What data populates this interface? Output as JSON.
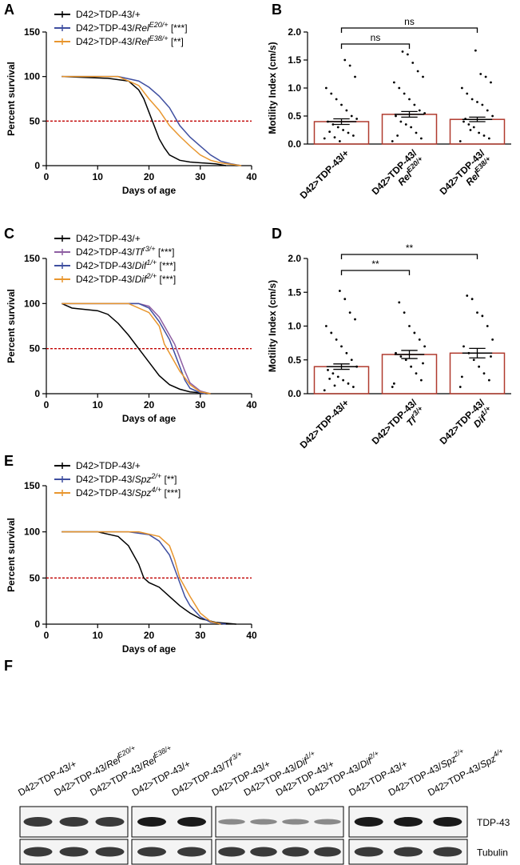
{
  "chart_data": [
    {
      "type": "line",
      "panel": "A",
      "ylabel": "Percent survival",
      "xlabel": "Days of age",
      "xlim": [
        0,
        40
      ],
      "xticks": [
        0,
        10,
        20,
        30,
        40
      ],
      "ylim": [
        0,
        150
      ],
      "yticks": [
        0,
        50,
        100,
        150
      ],
      "hline": 50,
      "hline_color": "#c00000",
      "series": [
        {
          "name": "D42>TDP-43/+",
          "color": "#000000",
          "x": [
            3,
            12,
            16,
            18,
            19,
            20,
            21,
            22,
            23,
            24,
            26,
            28,
            33,
            35
          ],
          "values": [
            100,
            98,
            95,
            85,
            75,
            60,
            45,
            30,
            20,
            12,
            6,
            4,
            2,
            0
          ]
        },
        {
          "name": "D42>TDP-43/",
          "gene": "Rel",
          "allele": "E20/+",
          "significance": "[***]",
          "color": "#3f4fa0",
          "x": [
            3,
            14,
            18,
            20,
            22,
            24,
            26,
            28,
            30,
            32,
            34,
            36,
            38
          ],
          "values": [
            100,
            100,
            95,
            88,
            78,
            65,
            45,
            32,
            22,
            12,
            5,
            2,
            0
          ]
        },
        {
          "name": "D42>TDP-43/",
          "gene": "Rel",
          "allele": "E38/+",
          "significance": "[**]",
          "color": "#e8962e",
          "x": [
            3,
            14,
            18,
            20,
            22,
            24,
            26,
            28,
            30,
            32,
            34,
            38
          ],
          "values": [
            100,
            100,
            90,
            75,
            62,
            45,
            33,
            22,
            12,
            6,
            3,
            0
          ]
        }
      ]
    },
    {
      "type": "bar",
      "panel": "B",
      "ylabel": "Motility Index (cm/s)",
      "categories": [
        "D42>TDP-43/+",
        "D42>TDP-43/",
        "D42>TDP-43/"
      ],
      "category_genes": [
        null,
        "Rel",
        "Rel"
      ],
      "category_alleles": [
        null,
        "E20/+",
        "E38/+"
      ],
      "values": [
        0.4,
        0.53,
        0.44
      ],
      "errors": [
        0.05,
        0.05,
        0.04
      ],
      "color": "#b03a2e",
      "points": [
        [
          0.1,
          0.15,
          0.2,
          0.25,
          0.3,
          0.35,
          0.4,
          0.45,
          0.5,
          0.6,
          0.7,
          0.8,
          0.9,
          1.0,
          1.2,
          1.4,
          1.5,
          0.05,
          0.12,
          0.22
        ],
        [
          0.05,
          0.1,
          0.2,
          0.3,
          0.35,
          0.4,
          0.5,
          0.55,
          0.6,
          0.7,
          0.8,
          0.9,
          1.0,
          1.1,
          1.2,
          1.3,
          1.45,
          1.6,
          1.65,
          0.15
        ],
        [
          0.05,
          0.1,
          0.15,
          0.2,
          0.3,
          0.35,
          0.4,
          0.5,
          0.6,
          0.7,
          0.75,
          0.8,
          0.9,
          1.0,
          1.1,
          1.2,
          1.25,
          1.67,
          0.25,
          0.45
        ]
      ],
      "ylim": [
        0,
        2
      ],
      "yticks": [
        {
          "value": 0,
          "label": "0.0"
        },
        0.5,
        {
          "value": 1,
          "label": "1.0"
        },
        1.5,
        {
          "value": 2,
          "label": "2.0"
        }
      ],
      "annotations": [
        {
          "from": 0,
          "to": 1,
          "label": "ns"
        },
        {
          "from": 0,
          "to": 2,
          "label": "ns"
        }
      ]
    },
    {
      "type": "line",
      "panel": "C",
      "ylabel": "Percent survival",
      "xlabel": "Days of age",
      "xlim": [
        0,
        40
      ],
      "xticks": [
        0,
        10,
        20,
        30,
        40
      ],
      "ylim": [
        0,
        150
      ],
      "yticks": [
        0,
        50,
        100,
        150
      ],
      "hline": 50,
      "hline_color": "#c00000",
      "series": [
        {
          "name": "D42>TDP-43/+",
          "color": "#000000",
          "x": [
            3,
            5,
            10,
            12,
            14,
            16,
            18,
            20,
            22,
            24,
            26,
            28,
            32
          ],
          "values": [
            100,
            95,
            92,
            88,
            78,
            65,
            50,
            35,
            20,
            10,
            5,
            2,
            0
          ]
        },
        {
          "name": "D42>TDP-43/",
          "gene": "Tl",
          "allele": "r3/+",
          "significance": "[***]",
          "color": "#8e5ea2",
          "x": [
            3,
            18,
            20,
            22,
            24,
            25,
            26,
            27,
            28,
            30,
            32
          ],
          "values": [
            100,
            100,
            97,
            85,
            65,
            55,
            40,
            25,
            12,
            3,
            0
          ]
        },
        {
          "name": "D42>TDP-43/",
          "gene": "Dif",
          "allele": "1/+",
          "significance": "[***]",
          "color": "#3f4fa0",
          "x": [
            3,
            18,
            20,
            22,
            24,
            25,
            26,
            27,
            28,
            30,
            31
          ],
          "values": [
            100,
            100,
            95,
            80,
            60,
            45,
            30,
            15,
            6,
            1,
            0
          ]
        },
        {
          "name": "D42>TDP-43/",
          "gene": "Dif",
          "allele": "2/+",
          "significance": "[***]",
          "color": "#e8962e",
          "x": [
            3,
            16,
            20,
            22,
            23,
            24,
            26,
            28,
            30,
            32
          ],
          "values": [
            100,
            100,
            90,
            75,
            55,
            45,
            25,
            10,
            2,
            0
          ]
        }
      ]
    },
    {
      "type": "bar",
      "panel": "D",
      "ylabel": "Motility Index (cm/s)",
      "categories": [
        "D42>TDP-43/+",
        "D42>TDP-43/",
        "D42>TDP-43/"
      ],
      "category_genes": [
        null,
        "Tl",
        "Dif"
      ],
      "category_alleles": [
        null,
        "r3/+",
        "1/+"
      ],
      "values": [
        0.4,
        0.58,
        0.6
      ],
      "errors": [
        0.04,
        0.06,
        0.07
      ],
      "color": "#b03a2e",
      "points": [
        [
          0.05,
          0.1,
          0.15,
          0.2,
          0.25,
          0.3,
          0.35,
          0.4,
          0.5,
          0.6,
          0.7,
          0.8,
          0.9,
          1.0,
          1.1,
          1.2,
          1.4,
          1.52,
          0.12,
          0.22
        ],
        [
          0.1,
          0.2,
          0.3,
          0.4,
          0.5,
          0.55,
          0.6,
          0.7,
          0.8,
          0.9,
          1.0,
          1.2,
          1.35,
          0.15,
          0.45
        ],
        [
          0.1,
          0.2,
          0.3,
          0.4,
          0.5,
          0.6,
          0.7,
          0.8,
          1.0,
          1.15,
          1.2,
          1.4,
          1.45,
          0.25,
          0.55
        ]
      ],
      "ylim": [
        0,
        2
      ],
      "yticks": [
        {
          "value": 0,
          "label": "0.0"
        },
        0.5,
        {
          "value": 1,
          "label": "1.0"
        },
        1.5,
        {
          "value": 2,
          "label": "2.0"
        }
      ],
      "annotations": [
        {
          "from": 0,
          "to": 1,
          "label": "**"
        },
        {
          "from": 0,
          "to": 2,
          "label": "**"
        }
      ]
    },
    {
      "type": "line",
      "panel": "E",
      "ylabel": "Percent survival",
      "xlabel": "Days of age",
      "xlim": [
        0,
        40
      ],
      "xticks": [
        0,
        10,
        20,
        30,
        40
      ],
      "ylim": [
        0,
        150
      ],
      "yticks": [
        0,
        50,
        100,
        150
      ],
      "hline": 50,
      "hline_color": "#c00000",
      "series": [
        {
          "name": "D42>TDP-43/+",
          "color": "#000000",
          "x": [
            3,
            10,
            14,
            16,
            18,
            19,
            20,
            22,
            24,
            26,
            28,
            30,
            33,
            37
          ],
          "values": [
            100,
            100,
            95,
            85,
            65,
            50,
            45,
            40,
            30,
            20,
            12,
            6,
            2,
            0
          ]
        },
        {
          "name": "D42>TDP-43/",
          "gene": "Spz",
          "allele": "2/+",
          "significance": "[**]",
          "color": "#3f4fa0",
          "x": [
            3,
            16,
            20,
            22,
            24,
            25,
            26,
            27,
            28,
            30,
            32,
            35
          ],
          "values": [
            100,
            100,
            97,
            90,
            75,
            60,
            45,
            30,
            20,
            8,
            2,
            0
          ]
        },
        {
          "name": "D42>TDP-43/",
          "gene": "Spz",
          "allele": "4/+",
          "significance": "[***]",
          "color": "#e8962e",
          "x": [
            3,
            18,
            22,
            24,
            25,
            26,
            28,
            30,
            32,
            34
          ],
          "values": [
            100,
            100,
            95,
            85,
            70,
            50,
            30,
            12,
            3,
            0
          ]
        }
      ]
    }
  ],
  "blot": {
    "panel": "F",
    "rows": [
      "TDP-43",
      "Tubulin"
    ],
    "groups": [
      {
        "lanes": [
          {
            "name": "D42>TDP-43/+"
          },
          {
            "name": "D42>TDP-43/",
            "gene": "Rel",
            "allele": "E20/+"
          },
          {
            "name": "D42>TDP-43/",
            "gene": "Rel",
            "allele": "E38/+"
          }
        ]
      },
      {
        "lanes": [
          {
            "name": "D42>TDP-43/+"
          },
          {
            "name": "D42>TDP-43/",
            "gene": "Tl",
            "allele": "r3/+"
          }
        ]
      },
      {
        "lanes": [
          {
            "name": "D42>TDP-43/+"
          },
          {
            "name": "D42>TDP-43/",
            "gene": "Dif",
            "allele": "1/+"
          },
          {
            "name": "D42>TDP-43/+"
          },
          {
            "name": "D42>TDP-43/",
            "gene": "Dif",
            "allele": "2/+"
          }
        ]
      },
      {
        "lanes": [
          {
            "name": "D42>TDP-43/+"
          },
          {
            "name": "D42>TDP-43/",
            "gene": "Spz",
            "allele": "2/+"
          },
          {
            "name": "D42>TDP-43/",
            "gene": "Spz",
            "allele": "4/+"
          }
        ]
      }
    ]
  }
}
